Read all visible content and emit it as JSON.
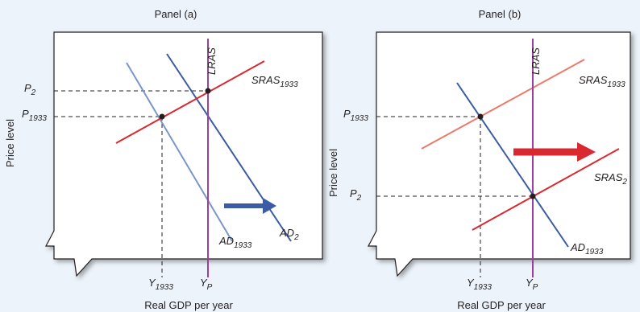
{
  "figure": {
    "background": "#ecf3fa"
  },
  "chart_data": [
    {
      "type": "line",
      "title": "Panel (a)",
      "xlabel": "Real GDP per year",
      "ylabel": "Price level",
      "x_ticks": [
        {
          "base": "Y",
          "sub": "1933"
        },
        {
          "base": "Y",
          "sub": "P"
        }
      ],
      "y_ticks": [
        {
          "base": "P",
          "sub": "2"
        },
        {
          "base": "P",
          "sub": "1933"
        }
      ],
      "curves": [
        {
          "id": "LRAS",
          "label_base": "LRAS",
          "label_sub": "",
          "color": "#9b3fa0"
        },
        {
          "id": "SRAS1933",
          "label_base": "SRAS",
          "label_sub": "1933",
          "color": "#d9282f"
        },
        {
          "id": "AD1933",
          "label_base": "AD",
          "label_sub": "1933",
          "color": "#7b95c9"
        },
        {
          "id": "AD2",
          "label_base": "AD",
          "label_sub": "2",
          "color": "#3b5ba5"
        }
      ],
      "shift_arrow": {
        "color": "#3b5ba5",
        "direction": "right"
      }
    },
    {
      "type": "line",
      "title": "Panel (b)",
      "xlabel": "Real GDP per year",
      "ylabel": "Price level",
      "x_ticks": [
        {
          "base": "Y",
          "sub": "1933"
        },
        {
          "base": "Y",
          "sub": "P"
        }
      ],
      "y_ticks": [
        {
          "base": "P",
          "sub": "1933"
        },
        {
          "base": "P",
          "sub": "2"
        }
      ],
      "curves": [
        {
          "id": "LRAS",
          "label_base": "LRAS",
          "label_sub": "",
          "color": "#9b3fa0"
        },
        {
          "id": "SRAS1933",
          "label_base": "SRAS",
          "label_sub": "1933",
          "color": "#ec7a6a"
        },
        {
          "id": "SRAS2",
          "label_base": "SRAS",
          "label_sub": "2",
          "color": "#d9282f"
        },
        {
          "id": "AD1933",
          "label_base": "AD",
          "label_sub": "1933",
          "color": "#3b5ba5"
        }
      ],
      "shift_arrow": {
        "color": "#d9282f",
        "direction": "right"
      }
    }
  ]
}
